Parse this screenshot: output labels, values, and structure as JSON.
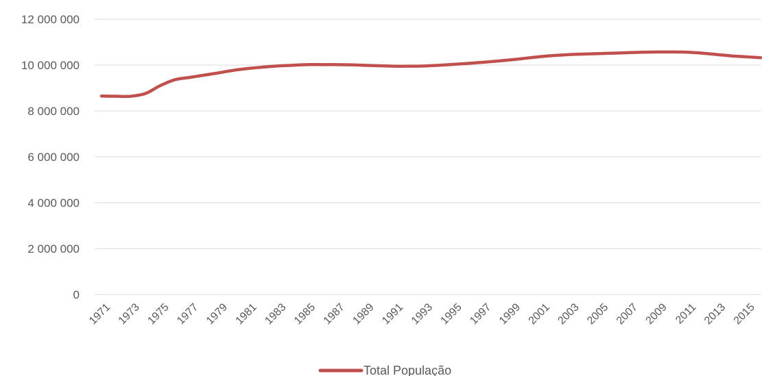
{
  "chart_data": {
    "type": "line",
    "title": "",
    "xlabel": "",
    "ylabel": "",
    "ylim": [
      0,
      12000000
    ],
    "grid": true,
    "legend_position": "bottom",
    "y_ticks": [
      {
        "value": 0,
        "label": "0"
      },
      {
        "value": 2000000,
        "label": "2 000 000"
      },
      {
        "value": 4000000,
        "label": "4 000 000"
      },
      {
        "value": 6000000,
        "label": "6 000 000"
      },
      {
        "value": 8000000,
        "label": "8 000 000"
      },
      {
        "value": 10000000,
        "label": "10 000 000"
      },
      {
        "value": 12000000,
        "label": "12 000 000"
      }
    ],
    "x_tick_labels": [
      "1971",
      "1973",
      "1975",
      "1977",
      "1979",
      "1981",
      "1983",
      "1985",
      "1987",
      "1989",
      "1991",
      "1993",
      "1995",
      "1997",
      "1999",
      "2001",
      "2003",
      "2005",
      "2007",
      "2009",
      "2011",
      "2013",
      "2015"
    ],
    "x": [
      1971,
      1972,
      1973,
      1974,
      1975,
      1976,
      1977,
      1978,
      1979,
      1980,
      1981,
      1982,
      1983,
      1984,
      1985,
      1986,
      1987,
      1988,
      1989,
      1990,
      1991,
      1992,
      1993,
      1994,
      1995,
      1996,
      1997,
      1998,
      1999,
      2000,
      2001,
      2002,
      2003,
      2004,
      2005,
      2006,
      2007,
      2008,
      2009,
      2010,
      2011,
      2012,
      2013,
      2014,
      2015,
      2016
    ],
    "series": [
      {
        "name": "Total População",
        "color": "#c0504d",
        "values": [
          8650000,
          8640000,
          8640000,
          8760000,
          9100000,
          9360000,
          9460000,
          9560000,
          9660000,
          9770000,
          9850000,
          9910000,
          9960000,
          9990000,
          10020000,
          10020000,
          10020000,
          10010000,
          9990000,
          9970000,
          9950000,
          9950000,
          9960000,
          9990000,
          10030000,
          10070000,
          10120000,
          10170000,
          10230000,
          10300000,
          10370000,
          10420000,
          10460000,
          10480000,
          10500000,
          10520000,
          10540000,
          10560000,
          10570000,
          10570000,
          10560000,
          10520000,
          10460000,
          10400000,
          10360000,
          10320000
        ]
      }
    ]
  }
}
